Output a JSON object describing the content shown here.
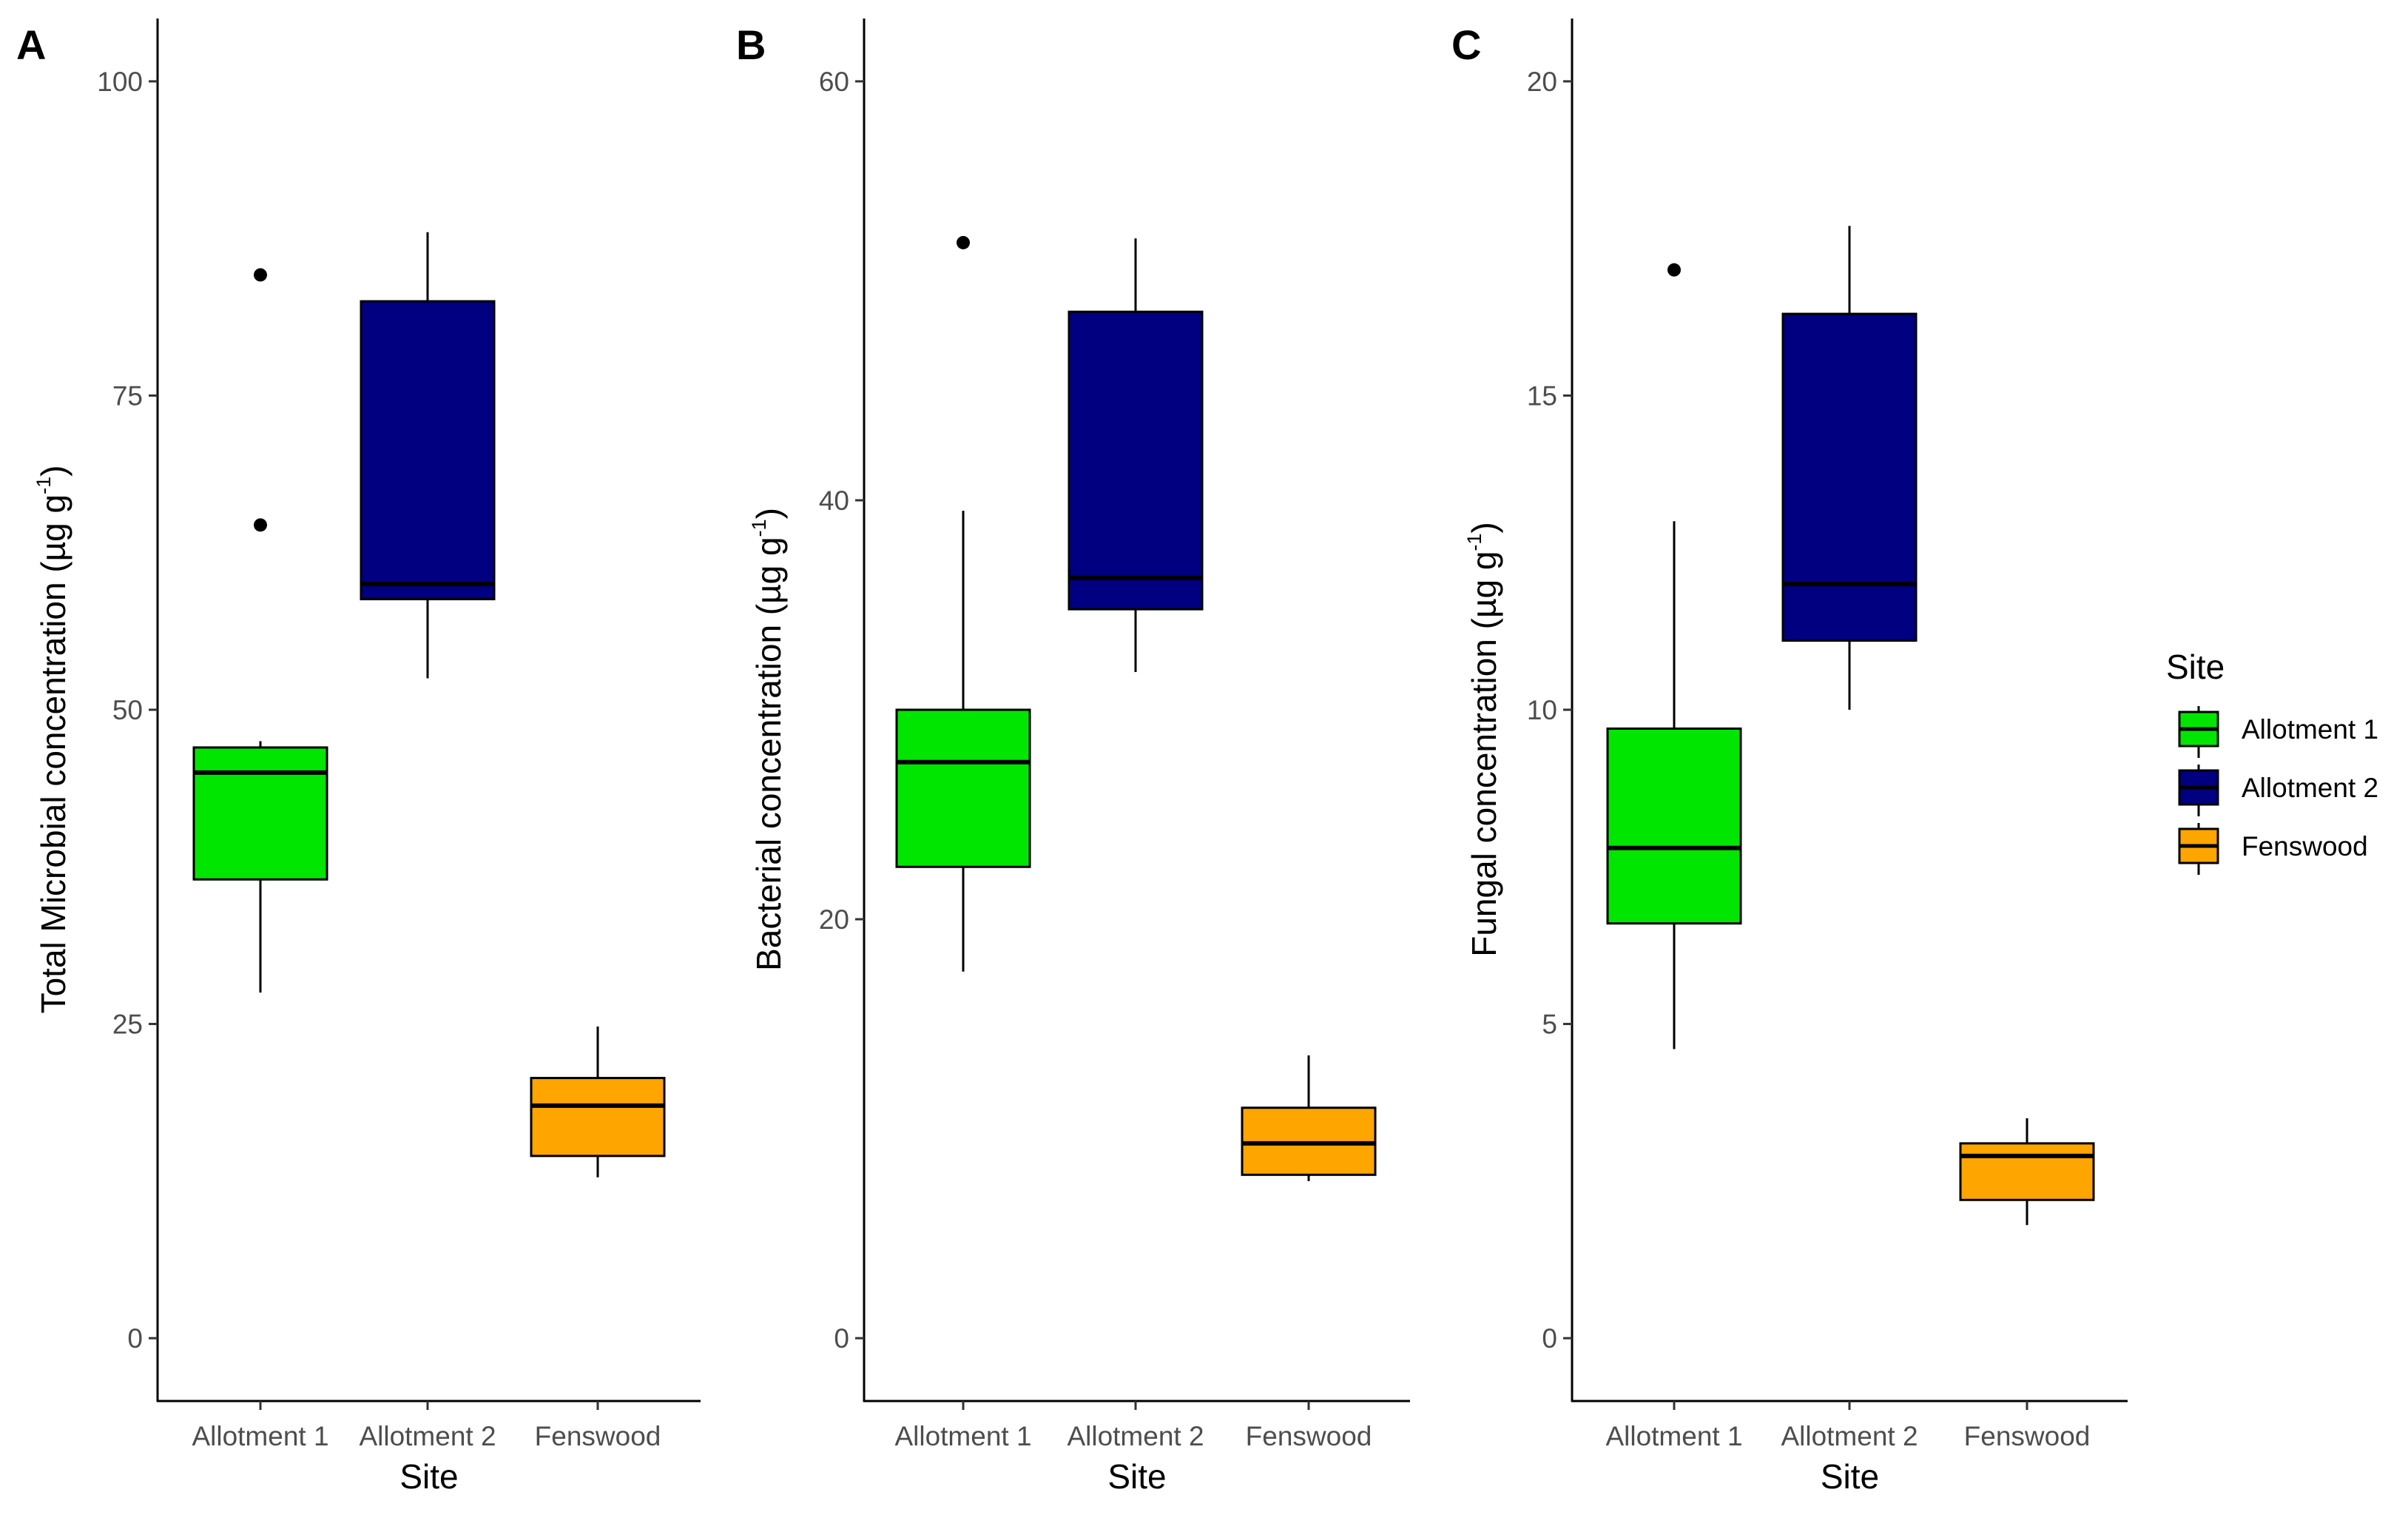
{
  "site_colors": {
    "Allotment 1": "#00e600",
    "Allotment 2": "#000080",
    "Fenswood": "#ffa500"
  },
  "chart_data": [
    {
      "type": "boxplot",
      "panel": "A",
      "xlabel": "Site",
      "ylabel": "Total Microbial concentration (µg g",
      "ylabel_sup": "-1",
      "ylabel_close": ")",
      "ylim": [
        -5,
        105
      ],
      "yticks": [
        0,
        25,
        50,
        75,
        100
      ],
      "ytick_labels": [
        "0",
        "25",
        "50",
        "75",
        "100"
      ],
      "categories": [
        "Allotment 1",
        "Allotment 2",
        "Fenswood"
      ],
      "boxes": [
        {
          "site": "Allotment 1",
          "whisker_low": 27.5,
          "q1": 36.5,
          "median": 45.0,
          "q3": 47.0,
          "whisker_high": 47.5,
          "outliers": [
            64.7,
            84.6
          ]
        },
        {
          "site": "Allotment 2",
          "whisker_low": 52.5,
          "q1": 58.8,
          "median": 60.0,
          "q3": 82.5,
          "whisker_high": 88.0,
          "outliers": []
        },
        {
          "site": "Fenswood",
          "whisker_low": 12.8,
          "q1": 14.5,
          "median": 18.5,
          "q3": 20.7,
          "whisker_high": 24.8,
          "outliers": []
        }
      ]
    },
    {
      "type": "boxplot",
      "panel": "B",
      "xlabel": "Site",
      "ylabel": "Bacterial concentration (µg g",
      "ylabel_sup": "-1",
      "ylabel_close": ")",
      "ylim": [
        -3,
        63
      ],
      "yticks": [
        0,
        20,
        40,
        60
      ],
      "ytick_labels": [
        "0",
        "20",
        "40",
        "60"
      ],
      "categories": [
        "Allotment 1",
        "Allotment 2",
        "Fenswood"
      ],
      "boxes": [
        {
          "site": "Allotment 1",
          "whisker_low": 17.5,
          "q1": 22.5,
          "median": 27.5,
          "q3": 30.0,
          "whisker_high": 39.5,
          "outliers": [
            52.3
          ]
        },
        {
          "site": "Allotment 2",
          "whisker_low": 31.8,
          "q1": 34.8,
          "median": 36.3,
          "q3": 49.0,
          "whisker_high": 52.5,
          "outliers": []
        },
        {
          "site": "Fenswood",
          "whisker_low": 7.5,
          "q1": 7.8,
          "median": 9.3,
          "q3": 11.0,
          "whisker_high": 13.5,
          "outliers": []
        }
      ]
    },
    {
      "type": "boxplot",
      "panel": "C",
      "xlabel": "Site",
      "ylabel": "Fungal concentration (µg g",
      "ylabel_sup": "-1",
      "ylabel_close": ")",
      "ylim": [
        -1,
        21
      ],
      "yticks": [
        0,
        5,
        10,
        15,
        20
      ],
      "ytick_labels": [
        "0",
        "5",
        "10",
        "15",
        "20"
      ],
      "categories": [
        "Allotment 1",
        "Allotment 2",
        "Fenswood"
      ],
      "boxes": [
        {
          "site": "Allotment 1",
          "whisker_low": 4.6,
          "q1": 6.6,
          "median": 7.8,
          "q3": 9.7,
          "whisker_high": 13.0,
          "outliers": [
            17.0
          ]
        },
        {
          "site": "Allotment 2",
          "whisker_low": 10.0,
          "q1": 11.1,
          "median": 12.0,
          "q3": 16.3,
          "whisker_high": 17.7,
          "outliers": []
        },
        {
          "site": "Fenswood",
          "whisker_low": 1.8,
          "q1": 2.2,
          "median": 2.9,
          "q3": 3.1,
          "whisker_high": 3.5,
          "outliers": []
        }
      ]
    }
  ],
  "legend": {
    "title": "Site",
    "items": [
      {
        "label": "Allotment 1",
        "color": "#00e600"
      },
      {
        "label": "Allotment 2",
        "color": "#000080"
      },
      {
        "label": "Fenswood",
        "color": "#ffa500"
      }
    ]
  }
}
